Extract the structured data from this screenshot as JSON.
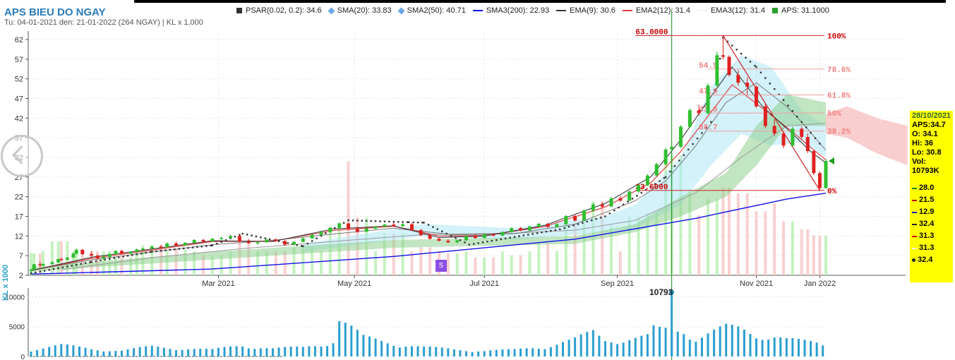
{
  "header": {
    "title": "APS BIEU DO NGAY",
    "subtitle": "Tu: 04-01-2021 den: 21-01-2022 (264 NGAY) | KL x 1,000"
  },
  "legend": [
    {
      "label": "PSAR(0.02, 0.2): 34.6",
      "color": "#333333",
      "marker": "square"
    },
    {
      "label": "SMA(20): 33.83",
      "color": "#6aa6e8",
      "marker": "diamond"
    },
    {
      "label": "SMA2(50): 40.71",
      "color": "#6aa6e8",
      "marker": "diamond"
    },
    {
      "label": "SMA3(200): 22.93",
      "color": "#1010ee",
      "marker": "line"
    },
    {
      "label": "EMA(9): 30.6",
      "color": "#333333",
      "marker": "line"
    },
    {
      "label": "EMA2(12): 31.4",
      "color": "#e04040",
      "marker": "line"
    },
    {
      "label": "EMA3(12): 31.4",
      "color": "#f4f4f4",
      "marker": "line"
    },
    {
      "label": "APS: 31.1000",
      "color": "#2aa02a",
      "marker": "square"
    }
  ],
  "infobox": {
    "date": "28/10/2021",
    "aps": "APS:34.7",
    "open": "O: 34.1",
    "high": "Hi: 36",
    "low": "Lo: 30.8",
    "vol_label": "Vol:",
    "vol": "10793K",
    "levels": [
      {
        "text": "28.0",
        "color": "#1a8a1a"
      },
      {
        "text": "21.5",
        "color": "#d00000"
      },
      {
        "text": "12.9",
        "color": "#1010cc"
      },
      {
        "text": "32.4",
        "color": "#222222"
      },
      {
        "text": "31.3",
        "color": "#d00000"
      },
      {
        "text": "31.3",
        "color": "#f4f4f4"
      },
      {
        "text": "32.4",
        "color": "#222222"
      }
    ]
  },
  "volume_panel": {
    "axis_label": "KL x 1000",
    "peak_label": "10793",
    "ticks": [
      "10000",
      "5000",
      "0"
    ]
  },
  "badge": "S",
  "chart_data": {
    "type": "candlestick",
    "y_ticks": [
      2,
      7,
      12,
      17,
      22,
      27,
      32,
      37,
      42,
      47,
      52,
      57,
      62
    ],
    "ylim": [
      2,
      64.5
    ],
    "x_labels": [
      "Mar 2021",
      "May 2021",
      "Jul 2021",
      "Sep 2021",
      "Nov 2021",
      "Jan 2022"
    ],
    "fibonacci": {
      "high": "63.0000",
      "low": "23.6000",
      "levels": [
        {
          "pct": "100%",
          "price": "63.0000",
          "value": 63.0
        },
        {
          "pct": "78.6%",
          "price": "54.5",
          "value": 54.5
        },
        {
          "pct": "61.8%",
          "price": "47.9",
          "value": 47.9
        },
        {
          "pct": "50%",
          "price": "43.3",
          "value": 43.3
        },
        {
          "pct": "38.2%",
          "price": "38.7",
          "value": 38.7
        },
        {
          "pct": "0%",
          "price": "23.6000",
          "value": 23.6
        }
      ]
    },
    "candles": [
      {
        "d": 0,
        "o": 3.1,
        "h": 3.6,
        "l": 2.7,
        "c": 3.4
      },
      {
        "d": 1,
        "o": 3.4,
        "h": 4.9,
        "l": 3.3,
        "c": 4.8
      },
      {
        "d": 3,
        "o": 4.8,
        "h": 5.4,
        "l": 4.1,
        "c": 4.5
      },
      {
        "d": 4,
        "o": 4.5,
        "h": 5.0,
        "l": 4.3,
        "c": 4.9
      },
      {
        "d": 7,
        "o": 4.9,
        "h": 5.5,
        "l": 4.7,
        "c": 5.3
      },
      {
        "d": 9,
        "o": 5.3,
        "h": 6.3,
        "l": 5.2,
        "c": 6.1
      },
      {
        "d": 10,
        "o": 6.1,
        "h": 6.5,
        "l": 5.8,
        "c": 6.0
      },
      {
        "d": 12,
        "o": 6.0,
        "h": 6.6,
        "l": 5.8,
        "c": 6.5
      },
      {
        "d": 14,
        "o": 6.5,
        "h": 7.7,
        "l": 6.4,
        "c": 7.5
      },
      {
        "d": 15,
        "o": 7.5,
        "h": 8.8,
        "l": 7.3,
        "c": 8.5
      },
      {
        "d": 17,
        "o": 8.5,
        "h": 8.7,
        "l": 7.2,
        "c": 7.4
      },
      {
        "d": 20,
        "o": 7.4,
        "h": 8.1,
        "l": 6.8,
        "c": 7.0
      },
      {
        "d": 22,
        "o": 7.0,
        "h": 7.3,
        "l": 6.1,
        "c": 6.3
      },
      {
        "d": 24,
        "o": 6.3,
        "h": 6.9,
        "l": 6.0,
        "c": 6.7
      },
      {
        "d": 26,
        "o": 6.7,
        "h": 7.6,
        "l": 6.6,
        "c": 7.4
      },
      {
        "d": 28,
        "o": 7.4,
        "h": 8.4,
        "l": 7.2,
        "c": 8.2
      },
      {
        "d": 30,
        "o": 8.2,
        "h": 8.5,
        "l": 7.3,
        "c": 7.5
      },
      {
        "d": 33,
        "o": 7.5,
        "h": 8.1,
        "l": 7.4,
        "c": 8.0
      },
      {
        "d": 35,
        "o": 8.0,
        "h": 8.8,
        "l": 7.8,
        "c": 8.6
      },
      {
        "d": 37,
        "o": 8.6,
        "h": 9.0,
        "l": 8.3,
        "c": 8.8
      },
      {
        "d": 40,
        "o": 8.8,
        "h": 9.6,
        "l": 8.7,
        "c": 9.3
      },
      {
        "d": 43,
        "o": 9.3,
        "h": 9.8,
        "l": 8.9,
        "c": 9.1
      },
      {
        "d": 45,
        "o": 9.1,
        "h": 10.4,
        "l": 9.0,
        "c": 10.1
      },
      {
        "d": 48,
        "o": 10.1,
        "h": 10.5,
        "l": 9.4,
        "c": 9.6
      },
      {
        "d": 51,
        "o": 9.6,
        "h": 10.4,
        "l": 9.5,
        "c": 10.3
      },
      {
        "d": 54,
        "o": 10.3,
        "h": 11.2,
        "l": 10.2,
        "c": 11.0
      },
      {
        "d": 57,
        "o": 11.0,
        "h": 11.3,
        "l": 10.5,
        "c": 10.6
      },
      {
        "d": 60,
        "o": 10.6,
        "h": 11.5,
        "l": 10.5,
        "c": 11.3
      },
      {
        "d": 63,
        "o": 11.3,
        "h": 11.8,
        "l": 11.0,
        "c": 11.5
      },
      {
        "d": 66,
        "o": 11.5,
        "h": 12.3,
        "l": 11.3,
        "c": 12.0
      },
      {
        "d": 69,
        "o": 12.0,
        "h": 12.3,
        "l": 10.4,
        "c": 10.6
      },
      {
        "d": 72,
        "o": 10.6,
        "h": 11.2,
        "l": 10.0,
        "c": 10.2
      },
      {
        "d": 75,
        "o": 10.2,
        "h": 10.6,
        "l": 9.8,
        "c": 10.4
      },
      {
        "d": 78,
        "o": 10.4,
        "h": 11.3,
        "l": 10.3,
        "c": 11.1
      },
      {
        "d": 81,
        "o": 11.1,
        "h": 11.4,
        "l": 10.5,
        "c": 10.7
      },
      {
        "d": 84,
        "o": 10.7,
        "h": 11.0,
        "l": 9.6,
        "c": 9.8
      },
      {
        "d": 87,
        "o": 9.8,
        "h": 10.6,
        "l": 9.6,
        "c": 10.5
      },
      {
        "d": 90,
        "o": 10.5,
        "h": 11.6,
        "l": 10.4,
        "c": 11.4
      },
      {
        "d": 93,
        "o": 11.4,
        "h": 12.6,
        "l": 11.3,
        "c": 12.3
      },
      {
        "d": 96,
        "o": 12.3,
        "h": 13.4,
        "l": 12.1,
        "c": 13.0
      },
      {
        "d": 99,
        "o": 13.0,
        "h": 14.3,
        "l": 12.8,
        "c": 14.1
      },
      {
        "d": 102,
        "o": 14.1,
        "h": 15.5,
        "l": 13.8,
        "c": 15.2
      },
      {
        "d": 105,
        "o": 15.2,
        "h": 15.3,
        "l": 13.6,
        "c": 13.8
      },
      {
        "d": 108,
        "o": 13.8,
        "h": 14.3,
        "l": 12.9,
        "c": 13.1
      },
      {
        "d": 111,
        "o": 13.1,
        "h": 14.1,
        "l": 13.0,
        "c": 13.9
      },
      {
        "d": 114,
        "o": 13.9,
        "h": 14.6,
        "l": 13.7,
        "c": 14.4
      },
      {
        "d": 117,
        "o": 14.4,
        "h": 15.1,
        "l": 14.2,
        "c": 14.9
      },
      {
        "d": 120,
        "o": 14.9,
        "h": 15.4,
        "l": 14.3,
        "c": 14.5
      },
      {
        "d": 123,
        "o": 14.5,
        "h": 15.2,
        "l": 14.4,
        "c": 15.0
      },
      {
        "d": 126,
        "o": 15.0,
        "h": 15.3,
        "l": 13.3,
        "c": 13.5
      },
      {
        "d": 129,
        "o": 13.5,
        "h": 13.8,
        "l": 12.0,
        "c": 12.2
      },
      {
        "d": 132,
        "o": 12.2,
        "h": 12.5,
        "l": 11.1,
        "c": 11.3
      },
      {
        "d": 135,
        "o": 11.3,
        "h": 11.7,
        "l": 10.6,
        "c": 10.8
      },
      {
        "d": 138,
        "o": 10.8,
        "h": 11.2,
        "l": 10.2,
        "c": 10.4
      },
      {
        "d": 141,
        "o": 10.4,
        "h": 11.1,
        "l": 10.2,
        "c": 10.9
      },
      {
        "d": 144,
        "o": 10.9,
        "h": 12.3,
        "l": 10.8,
        "c": 12.0
      },
      {
        "d": 147,
        "o": 12.0,
        "h": 12.5,
        "l": 11.3,
        "c": 11.5
      },
      {
        "d": 150,
        "o": 11.5,
        "h": 12.6,
        "l": 11.4,
        "c": 12.4
      },
      {
        "d": 153,
        "o": 12.4,
        "h": 12.7,
        "l": 11.9,
        "c": 12.1
      },
      {
        "d": 156,
        "o": 12.1,
        "h": 13.2,
        "l": 12.0,
        "c": 13.0
      },
      {
        "d": 159,
        "o": 13.0,
        "h": 14.2,
        "l": 12.9,
        "c": 14.0
      },
      {
        "d": 162,
        "o": 14.0,
        "h": 14.3,
        "l": 13.2,
        "c": 13.4
      },
      {
        "d": 165,
        "o": 13.4,
        "h": 14.6,
        "l": 13.3,
        "c": 14.4
      },
      {
        "d": 168,
        "o": 14.4,
        "h": 15.3,
        "l": 14.2,
        "c": 15.1
      },
      {
        "d": 171,
        "o": 15.1,
        "h": 15.4,
        "l": 14.1,
        "c": 14.3
      },
      {
        "d": 174,
        "o": 14.3,
        "h": 15.2,
        "l": 14.2,
        "c": 15.0
      },
      {
        "d": 177,
        "o": 15.0,
        "h": 17.3,
        "l": 14.9,
        "c": 17.1
      },
      {
        "d": 180,
        "o": 17.1,
        "h": 17.4,
        "l": 15.7,
        "c": 15.9
      },
      {
        "d": 183,
        "o": 15.9,
        "h": 18.8,
        "l": 15.8,
        "c": 18.5
      },
      {
        "d": 186,
        "o": 18.5,
        "h": 20.3,
        "l": 18.2,
        "c": 20.0
      },
      {
        "d": 189,
        "o": 20.0,
        "h": 20.6,
        "l": 19.0,
        "c": 19.5
      },
      {
        "d": 192,
        "o": 19.5,
        "h": 21.9,
        "l": 19.4,
        "c": 21.6
      },
      {
        "d": 195,
        "o": 21.6,
        "h": 22.2,
        "l": 20.7,
        "c": 21.0
      },
      {
        "d": 198,
        "o": 21.0,
        "h": 23.6,
        "l": 20.9,
        "c": 23.3
      },
      {
        "d": 201,
        "o": 23.3,
        "h": 25.2,
        "l": 23.0,
        "c": 24.9
      },
      {
        "d": 204,
        "o": 24.9,
        "h": 27.7,
        "l": 24.7,
        "c": 27.4
      },
      {
        "d": 207,
        "o": 27.4,
        "h": 30.6,
        "l": 27.2,
        "c": 30.3
      },
      {
        "d": 210,
        "o": 30.3,
        "h": 34.4,
        "l": 30.0,
        "c": 34.0
      },
      {
        "d": 212,
        "o": 34.1,
        "h": 36.0,
        "l": 30.8,
        "c": 34.7
      },
      {
        "d": 215,
        "o": 34.7,
        "h": 40.2,
        "l": 34.4,
        "c": 39.8
      },
      {
        "d": 218,
        "o": 39.8,
        "h": 44.5,
        "l": 39.5,
        "c": 44.0
      },
      {
        "d": 221,
        "o": 44.0,
        "h": 45.4,
        "l": 42.6,
        "c": 43.2
      },
      {
        "d": 224,
        "o": 43.2,
        "h": 50.8,
        "l": 43.0,
        "c": 50.3
      },
      {
        "d": 227,
        "o": 50.3,
        "h": 58.9,
        "l": 50.0,
        "c": 58.0
      },
      {
        "d": 229,
        "o": 58.0,
        "h": 63.0,
        "l": 56.9,
        "c": 57.6
      },
      {
        "d": 231,
        "o": 57.6,
        "h": 58.0,
        "l": 52.6,
        "c": 53.0
      },
      {
        "d": 234,
        "o": 53.0,
        "h": 54.2,
        "l": 50.2,
        "c": 51.0
      },
      {
        "d": 237,
        "o": 51.0,
        "h": 52.4,
        "l": 48.0,
        "c": 50.0
      },
      {
        "d": 240,
        "o": 50.0,
        "h": 50.4,
        "l": 44.6,
        "c": 45.0
      },
      {
        "d": 243,
        "o": 45.0,
        "h": 45.6,
        "l": 39.4,
        "c": 40.0
      },
      {
        "d": 246,
        "o": 40.0,
        "h": 41.6,
        "l": 37.5,
        "c": 38.1
      },
      {
        "d": 249,
        "o": 38.1,
        "h": 38.6,
        "l": 34.3,
        "c": 35.0
      },
      {
        "d": 252,
        "o": 35.0,
        "h": 39.8,
        "l": 34.8,
        "c": 39.3
      },
      {
        "d": 255,
        "o": 39.3,
        "h": 39.8,
        "l": 36.6,
        "c": 37.2
      },
      {
        "d": 257,
        "o": 37.2,
        "h": 38.1,
        "l": 33.1,
        "c": 33.6
      },
      {
        "d": 259,
        "o": 33.6,
        "h": 33.9,
        "l": 27.5,
        "c": 28.0
      },
      {
        "d": 261,
        "o": 28.0,
        "h": 28.4,
        "l": 23.6,
        "c": 24.2
      },
      {
        "d": 263,
        "o": 24.2,
        "h": 31.6,
        "l": 24.0,
        "c": 31.1
      }
    ],
    "sma20": [
      [
        0,
        3.3
      ],
      [
        20,
        5.9
      ],
      [
        40,
        7.9
      ],
      [
        60,
        9.8
      ],
      [
        80,
        10.9
      ],
      [
        100,
        12.5
      ],
      [
        120,
        14.0
      ],
      [
        140,
        12.3
      ],
      [
        160,
        12.6
      ],
      [
        180,
        15.0
      ],
      [
        200,
        21.0
      ],
      [
        210,
        26.0
      ],
      [
        220,
        35.0
      ],
      [
        230,
        46.0
      ],
      [
        240,
        51.0
      ],
      [
        250,
        45.0
      ],
      [
        255,
        41.0
      ],
      [
        263,
        33.8
      ]
    ],
    "sma50": [
      [
        10,
        3.4
      ],
      [
        40,
        6.5
      ],
      [
        70,
        8.8
      ],
      [
        100,
        10.6
      ],
      [
        130,
        12.4
      ],
      [
        160,
        12.7
      ],
      [
        180,
        13.5
      ],
      [
        200,
        16.0
      ],
      [
        220,
        23.0
      ],
      [
        235,
        32.0
      ],
      [
        250,
        40.0
      ],
      [
        263,
        40.7
      ]
    ],
    "sma200": [
      [
        0,
        2.3
      ],
      [
        60,
        3.6
      ],
      [
        120,
        6.8
      ],
      [
        180,
        11.2
      ],
      [
        220,
        16.5
      ],
      [
        250,
        21.4
      ],
      [
        263,
        22.9
      ]
    ],
    "ema9": [
      [
        0,
        3.2
      ],
      [
        20,
        6.6
      ],
      [
        40,
        8.7
      ],
      [
        60,
        10.8
      ],
      [
        80,
        10.6
      ],
      [
        100,
        13.8
      ],
      [
        120,
        14.6
      ],
      [
        135,
        11.6
      ],
      [
        150,
        12.0
      ],
      [
        170,
        14.7
      ],
      [
        190,
        20.3
      ],
      [
        205,
        27.0
      ],
      [
        215,
        36.5
      ],
      [
        225,
        47.5
      ],
      [
        232,
        55.0
      ],
      [
        242,
        45.0
      ],
      [
        252,
        38.0
      ],
      [
        258,
        33.5
      ],
      [
        263,
        30.6
      ]
    ],
    "ema12": [
      [
        0,
        3.2
      ],
      [
        20,
        6.3
      ],
      [
        40,
        8.4
      ],
      [
        60,
        10.6
      ],
      [
        80,
        10.7
      ],
      [
        100,
        13.4
      ],
      [
        120,
        14.5
      ],
      [
        135,
        12.0
      ],
      [
        150,
        12.1
      ],
      [
        170,
        14.4
      ],
      [
        190,
        19.4
      ],
      [
        205,
        25.5
      ],
      [
        215,
        33.5
      ],
      [
        225,
        43.5
      ],
      [
        232,
        50.5
      ],
      [
        242,
        44.5
      ],
      [
        252,
        38.5
      ],
      [
        258,
        34.5
      ],
      [
        263,
        31.4
      ]
    ],
    "psar": [
      [
        0,
        2.5
      ],
      [
        20,
        5.4
      ],
      [
        40,
        8.0
      ],
      [
        60,
        9.6
      ],
      [
        70,
        12.6
      ],
      [
        90,
        9.4
      ],
      [
        105,
        16.0
      ],
      [
        125,
        15.5
      ],
      [
        130,
        15.4
      ],
      [
        145,
        9.8
      ],
      [
        175,
        13.7
      ],
      [
        190,
        17.0
      ],
      [
        210,
        27.0
      ],
      [
        225,
        41.0
      ],
      [
        229,
        62.5
      ],
      [
        240,
        55.0
      ],
      [
        255,
        41.0
      ],
      [
        262,
        34.6
      ]
    ],
    "volume": [
      {
        "d": 0,
        "v": 1100
      },
      {
        "d": 10,
        "v": 1700
      },
      {
        "d": 20,
        "v": 1200
      },
      {
        "d": 30,
        "v": 900
      },
      {
        "d": 40,
        "v": 1500
      },
      {
        "d": 50,
        "v": 1300
      },
      {
        "d": 60,
        "v": 1000
      },
      {
        "d": 70,
        "v": 1800
      },
      {
        "d": 80,
        "v": 1200
      },
      {
        "d": 90,
        "v": 1400
      },
      {
        "d": 100,
        "v": 2400
      },
      {
        "d": 102,
        "v": 5700
      },
      {
        "d": 110,
        "v": 2900
      },
      {
        "d": 120,
        "v": 2100
      },
      {
        "d": 130,
        "v": 1400
      },
      {
        "d": 140,
        "v": 1100
      },
      {
        "d": 150,
        "v": 900
      },
      {
        "d": 160,
        "v": 1000
      },
      {
        "d": 170,
        "v": 1600
      },
      {
        "d": 180,
        "v": 2600
      },
      {
        "d": 186,
        "v": 3700
      },
      {
        "d": 190,
        "v": 2500
      },
      {
        "d": 200,
        "v": 2900
      },
      {
        "d": 205,
        "v": 3100
      },
      {
        "d": 212,
        "v": 10793
      },
      {
        "d": 215,
        "v": 4300
      },
      {
        "d": 220,
        "v": 3000
      },
      {
        "d": 225,
        "v": 3800
      },
      {
        "d": 230,
        "v": 4400
      },
      {
        "d": 235,
        "v": 4100
      },
      {
        "d": 240,
        "v": 3200
      },
      {
        "d": 245,
        "v": 3600
      },
      {
        "d": 250,
        "v": 2700
      },
      {
        "d": 255,
        "v": 2300
      },
      {
        "d": 260,
        "v": 2000
      },
      {
        "d": 263,
        "v": 1600
      }
    ]
  }
}
